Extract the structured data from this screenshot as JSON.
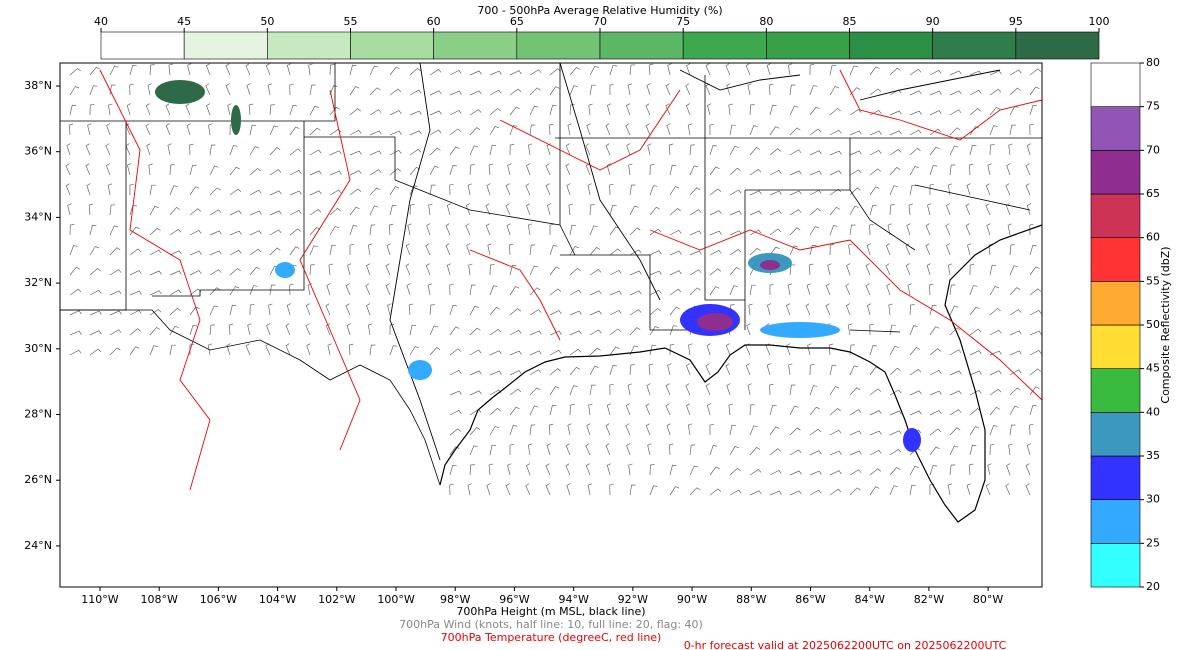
{
  "colorbar_top": {
    "title": "700 - 500hPa Average Relative Humidity (%)",
    "ticks": [
      40,
      45,
      50,
      55,
      60,
      65,
      70,
      75,
      80,
      85,
      90,
      95,
      100
    ],
    "colors": [
      "#ffffff",
      "#e5f4e1",
      "#c7e9c0",
      "#a9dca0",
      "#8bce87",
      "#73c375",
      "#5bb666",
      "#3ea850",
      "#37a049",
      "#2c8f47",
      "#2f7d4a",
      "#2f6a48"
    ]
  },
  "colorbar_right": {
    "title": "Composite Reflectivity (dbZ)",
    "ticks": [
      20,
      25,
      30,
      35,
      40,
      45,
      50,
      55,
      60,
      65,
      70,
      75,
      80
    ],
    "colors": [
      "#33ffff",
      "#33aaff",
      "#3333ff",
      "#3b99bf",
      "#39bb3f",
      "#ffdd33",
      "#ffaa33",
      "#ff3333",
      "#cc3355",
      "#8e2e8e",
      "#9155b5",
      "#ffffff"
    ]
  },
  "map": {
    "lat_lim": [
      22.75,
      38.7
    ],
    "lon_lim": [
      -111.35,
      -78.18
    ],
    "lat_ticks": [
      {
        "value": 38,
        "label": "38°N"
      },
      {
        "value": 36,
        "label": "36°N"
      },
      {
        "value": 34,
        "label": "34°N"
      },
      {
        "value": 32,
        "label": "32°N"
      },
      {
        "value": 30,
        "label": "30°N"
      },
      {
        "value": 28,
        "label": "28°N"
      },
      {
        "value": 26,
        "label": "26°N"
      },
      {
        "value": 24,
        "label": "24°N"
      }
    ],
    "lon_ticks": [
      {
        "value": -110,
        "label": "110°W"
      },
      {
        "value": -108,
        "label": "108°W"
      },
      {
        "value": -106,
        "label": "106°W"
      },
      {
        "value": -104,
        "label": "104°W"
      },
      {
        "value": -102,
        "label": "102°W"
      },
      {
        "value": -100,
        "label": "100°W"
      },
      {
        "value": -98,
        "label": "98°W"
      },
      {
        "value": -96,
        "label": "96°W"
      },
      {
        "value": -94,
        "label": "94°W"
      },
      {
        "value": -92,
        "label": "92°W"
      },
      {
        "value": -90,
        "label": "90°W"
      },
      {
        "value": -88,
        "label": "88°W"
      },
      {
        "value": -86,
        "label": "86°W"
      },
      {
        "value": -84,
        "label": "84°W"
      },
      {
        "value": -82,
        "label": "82°W"
      },
      {
        "value": -80,
        "label": "80°W"
      }
    ]
  },
  "captions": {
    "height": "700hPa Height (m MSL, black line)",
    "wind": "700hPa Wind (knots, half line: 10, full line: 20, flag: 40)",
    "temperature": "700hPa Temperature (degreeC, red line)",
    "valid": "0-hr forecast valid at 2025062200UTC on 2025062200UTC"
  }
}
